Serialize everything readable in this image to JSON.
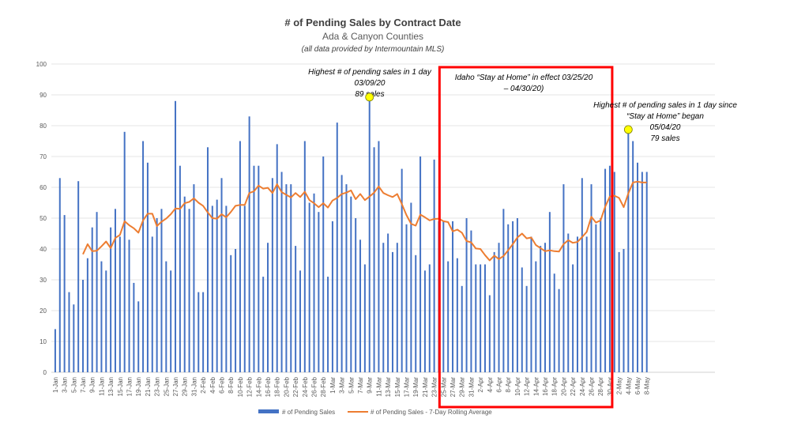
{
  "chart_data": {
    "type": "bar+line",
    "title": "# of Pending Sales by Contract Date",
    "subtitle": "Ada & Canyon Counties",
    "note": "(all data provided by Intermountain MLS)",
    "xlabel": "",
    "ylabel": "",
    "ylim": [
      0,
      100
    ],
    "yticks": [
      0,
      10,
      20,
      30,
      40,
      50,
      60,
      70,
      80,
      90,
      100
    ],
    "grid": true,
    "legend_position": "bottom",
    "categories": [
      "1-Jan",
      "2-Jan",
      "3-Jan",
      "4-Jan",
      "5-Jan",
      "6-Jan",
      "7-Jan",
      "8-Jan",
      "9-Jan",
      "10-Jan",
      "11-Jan",
      "12-Jan",
      "13-Jan",
      "14-Jan",
      "15-Jan",
      "16-Jan",
      "17-Jan",
      "18-Jan",
      "19-Jan",
      "20-Jan",
      "21-Jan",
      "22-Jan",
      "23-Jan",
      "24-Jan",
      "25-Jan",
      "26-Jan",
      "27-Jan",
      "28-Jan",
      "29-Jan",
      "30-Jan",
      "31-Jan",
      "1-Feb",
      "2-Feb",
      "3-Feb",
      "4-Feb",
      "5-Feb",
      "6-Feb",
      "7-Feb",
      "8-Feb",
      "9-Feb",
      "10-Feb",
      "11-Feb",
      "12-Feb",
      "13-Feb",
      "14-Feb",
      "15-Feb",
      "16-Feb",
      "17-Feb",
      "18-Feb",
      "19-Feb",
      "20-Feb",
      "21-Feb",
      "22-Feb",
      "23-Feb",
      "24-Feb",
      "25-Feb",
      "26-Feb",
      "27-Feb",
      "28-Feb",
      "29-Feb",
      "1-Mar",
      "2-Mar",
      "3-Mar",
      "4-Mar",
      "5-Mar",
      "6-Mar",
      "7-Mar",
      "8-Mar",
      "9-Mar",
      "10-Mar",
      "11-Mar",
      "12-Mar",
      "13-Mar",
      "14-Mar",
      "15-Mar",
      "16-Mar",
      "17-Mar",
      "18-Mar",
      "19-Mar",
      "20-Mar",
      "21-Mar",
      "22-Mar",
      "23-Mar",
      "24-Mar",
      "25-Mar",
      "26-Mar",
      "27-Mar",
      "28-Mar",
      "29-Mar",
      "30-Mar",
      "31-Mar",
      "1-Apr",
      "2-Apr",
      "3-Apr",
      "4-Apr",
      "5-Apr",
      "6-Apr",
      "7-Apr",
      "8-Apr",
      "9-Apr",
      "10-Apr",
      "11-Apr",
      "12-Apr",
      "13-Apr",
      "14-Apr",
      "15-Apr",
      "16-Apr",
      "17-Apr",
      "18-Apr",
      "19-Apr",
      "20-Apr",
      "21-Apr",
      "22-Apr",
      "23-Apr",
      "24-Apr",
      "25-Apr",
      "26-Apr",
      "27-Apr",
      "28-Apr",
      "29-Apr",
      "30-Apr",
      "1-May",
      "2-May",
      "3-May",
      "4-May",
      "5-May",
      "6-May",
      "7-May",
      "8-May"
    ],
    "series": [
      {
        "name": "# of Pending Sales",
        "type": "bar",
        "color": "#4472C4",
        "values": [
          14,
          63,
          51,
          26,
          22,
          62,
          30,
          37,
          47,
          52,
          36,
          33,
          47,
          53,
          44,
          78,
          43,
          29,
          23,
          75,
          68,
          44,
          50,
          53,
          36,
          33,
          88,
          67,
          57,
          53,
          61,
          26,
          26,
          73,
          54,
          56,
          63,
          54,
          38,
          40,
          75,
          54,
          83,
          67,
          67,
          31,
          42,
          63,
          74,
          65,
          61,
          61,
          41,
          33,
          75,
          55,
          58,
          52,
          70,
          31,
          49,
          81,
          64,
          61,
          57,
          50,
          43,
          35,
          89,
          73,
          75,
          42,
          45,
          39,
          42,
          66,
          48,
          55,
          38,
          70,
          33,
          35,
          69,
          49,
          49,
          36,
          49,
          37,
          28,
          50,
          46,
          35,
          35,
          35,
          25,
          39,
          42,
          53,
          48,
          49,
          50,
          34,
          28,
          44,
          36,
          41,
          42,
          52,
          32,
          27,
          61,
          45,
          35,
          44,
          63,
          44,
          61,
          48,
          50,
          66,
          67,
          65,
          39,
          40,
          79,
          75,
          68,
          65,
          65
        ]
      },
      {
        "name": "# of Pending Sales - 7-Day Rolling Average",
        "type": "line",
        "color": "#ED7D31",
        "window": 7
      }
    ],
    "annotations": [
      {
        "lines": [
          "Highest # of pending sales in 1 day",
          "03/09/20",
          "89 sales"
        ],
        "date": "9-Mar",
        "value": 89,
        "marker_color": "#FFFF00"
      },
      {
        "lines": [
          "Highest # of pending sales in 1 day since",
          "“Stay at Home” began",
          "05/04/20",
          "79 sales"
        ],
        "date": "4-May",
        "value": 79,
        "marker_color": "#FFFF00"
      },
      {
        "lines": [
          "Idaho “Stay at Home” in  effect 03/25/20",
          "– 04/30/20)"
        ],
        "range": [
          "25-Mar",
          "30-Apr"
        ],
        "box_color": "#FF0000"
      }
    ]
  }
}
